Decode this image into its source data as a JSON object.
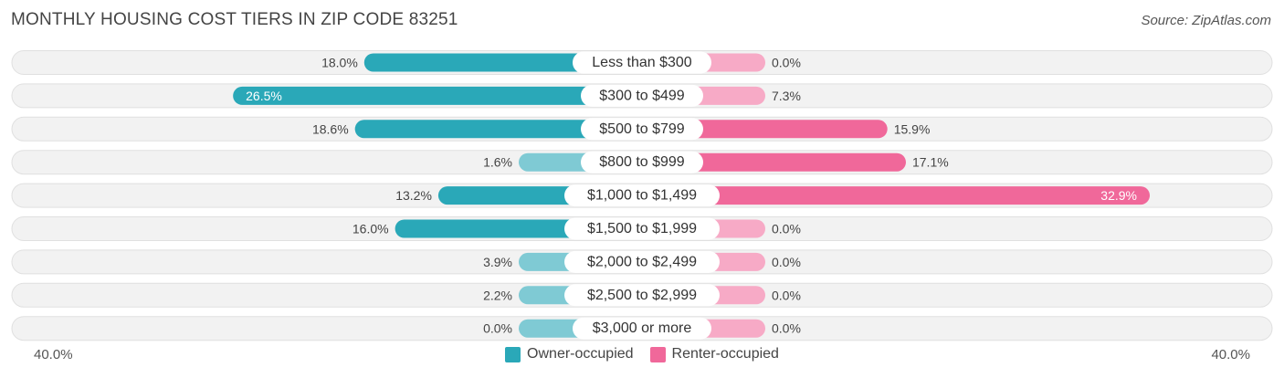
{
  "title": "MONTHLY HOUSING COST TIERS IN ZIP CODE 83251",
  "source": "Source: ZipAtlas.com",
  "axis": {
    "left_label": "40.0%",
    "right_label": "40.0%",
    "max": 40
  },
  "legend": {
    "owner_label": "Owner-occupied",
    "renter_label": "Renter-occupied"
  },
  "colors": {
    "owner_dark": "#2aa8b8",
    "owner_light": "#7fcad4",
    "renter_dark": "#f0689a",
    "renter_light": "#f7aac6",
    "row_bg": "#f2f2f2",
    "row_border": "#e0e0e0"
  },
  "chart_data": {
    "type": "bar",
    "orientation": "horizontal-diverging",
    "categories": [
      "Less than $300",
      "$300 to $499",
      "$500 to $799",
      "$800 to $999",
      "$1,000 to $1,499",
      "$1,500 to $1,999",
      "$2,000 to $2,499",
      "$2,500 to $2,999",
      "$3,000 or more"
    ],
    "series": [
      {
        "name": "Owner-occupied",
        "values": [
          18.0,
          26.5,
          18.6,
          1.6,
          13.2,
          16.0,
          3.9,
          2.2,
          0.0
        ],
        "labels": [
          "18.0%",
          "26.5%",
          "18.6%",
          "1.6%",
          "13.2%",
          "16.0%",
          "3.9%",
          "2.2%",
          "0.0%"
        ]
      },
      {
        "name": "Renter-occupied",
        "values": [
          0.0,
          7.3,
          15.9,
          17.1,
          32.9,
          0.0,
          0.0,
          0.0,
          0.0
        ],
        "labels": [
          "0.0%",
          "7.3%",
          "15.9%",
          "17.1%",
          "32.9%",
          "0.0%",
          "0.0%",
          "0.0%",
          "0.0%"
        ]
      }
    ],
    "xlim": [
      -40,
      40
    ]
  }
}
